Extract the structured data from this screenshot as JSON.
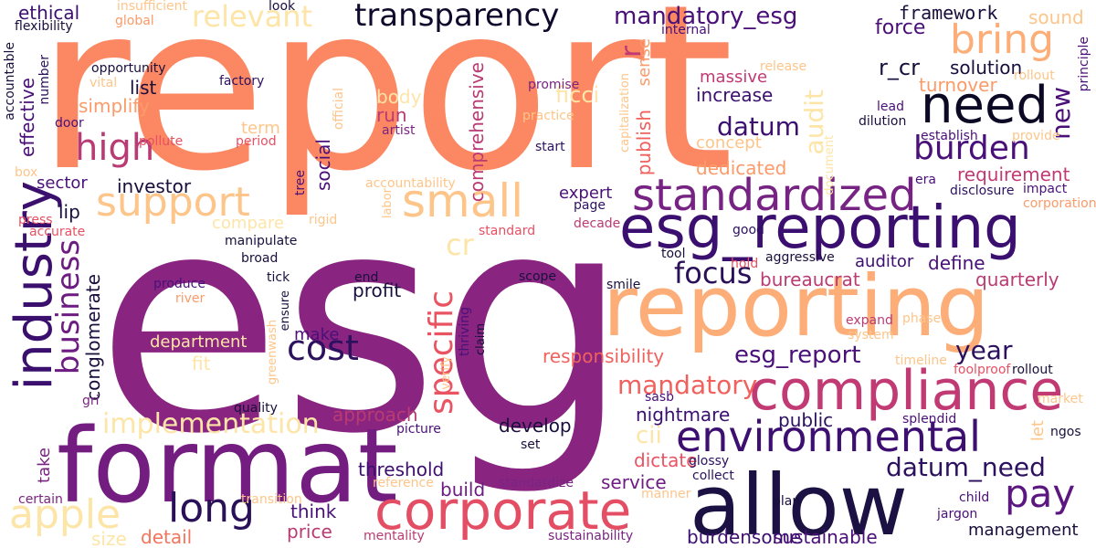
{
  "colors": {
    "background": "#ffffff",
    "palette": [
      "#190f3c",
      "#4a1079",
      "#7a2482",
      "#b93b73",
      "#e65163",
      "#f5745c",
      "#fb9b6a",
      "#fdbd83",
      "#fddc9e",
      "#fcfdbf"
    ]
  },
  "words": {
    "report": "report",
    "esg": "esg",
    "format": "format",
    "allow": "allow",
    "esg_reporting": "esg_reporting",
    "reporting": "reporting",
    "compliance": "compliance",
    "corporate": "corporate",
    "industry": "industry",
    "standardized": "standardized",
    "small": "small",
    "need": "need",
    "support": "support",
    "high": "high",
    "bring": "bring",
    "environmental": "environmental",
    "apple": "apple",
    "transparency": "transparency",
    "mandatory_esg": "mandatory_esg",
    "relevant": "relevant",
    "long": "long",
    "pay": "pay",
    "burden": "burden",
    "business": "business",
    "specific": "specific",
    "cost": "cost",
    "focus": "focus",
    "implementation": "implementation",
    "datum_need": "datum_need",
    "cr": "cr",
    "mandatory": "mandatory",
    "datum": "datum",
    "audit": "audit",
    "r_cr": "r_cr",
    "year": "year",
    "esg_report": "esg_report",
    "new": "new",
    "increase": "increase",
    "massive": "massive",
    "framework": "framework",
    "force": "force",
    "solution": "solution",
    "turnover": "turnover",
    "dedicated": "dedicated",
    "concept": "concept",
    "requirement": "requirement",
    "quarterly": "quarterly",
    "define": "define",
    "auditor": "auditor",
    "bureaucrat": "bureaucrat",
    "responsibility": "responsibility",
    "approach": "approach",
    "develop": "develop",
    "nightmare": "nightmare",
    "public": "public",
    "cii": "cii",
    "dictate": "dictate",
    "service": "service",
    "threshold": "threshold",
    "build": "build",
    "think": "think",
    "price": "price",
    "detail": "detail",
    "size": "size",
    "take": "take",
    "make": "make",
    "profit": "profit",
    "expert": "expert",
    "sector": "sector",
    "investor": "investor",
    "lip": "lip",
    "compare": "compare",
    "conglomerate": "conglomerate",
    "department": "department",
    "fit": "fit",
    "social": "social",
    "comprehensive": "comprehensive",
    "publish": "publish",
    "sense": "sense",
    "run": "run",
    "body": "body",
    "ficci": "ficci",
    "list": "list",
    "simplify": "simplify",
    "effective": "effective",
    "term": "term",
    "ethical": "ethical",
    "flexibility": "flexibility",
    "global": "global",
    "insufficient": "insufficient",
    "look": "look",
    "opportunity": "opportunity",
    "vital": "vital",
    "number": "number",
    "accountable": "accountable",
    "door": "door",
    "factory": "factory",
    "period": "period",
    "pollute": "pollute",
    "box": "box",
    "artist": "artist",
    "practice": "practice",
    "promise": "promise",
    "start": "start",
    "internal": "internal",
    "capitalization": "capitalization",
    "release": "release",
    "lead": "lead",
    "dilution": "dilution",
    "establish": "establish",
    "provide": "provide",
    "sound": "sound",
    "rollout": "rollout",
    "principle": "principle",
    "official": "official",
    "tree": "tree",
    "accountability": "accountability",
    "document": "document",
    "era": "era",
    "disclosure": "disclosure",
    "impact": "impact",
    "corporation": "corporation",
    "good": "good",
    "hold": "hold",
    "aggressive": "aggressive",
    "tool": "tool",
    "decade": "decade",
    "page": "page",
    "labor": "labor",
    "standard": "standard",
    "rigid": "rigid",
    "press": "press",
    "accurate": "accurate",
    "manipulate": "manipulate",
    "broad": "broad",
    "tick": "tick",
    "produce": "produce",
    "river": "river",
    "end": "end",
    "ensure": "ensure",
    "scope": "scope",
    "smile": "smile",
    "greenwash": "greenwash",
    "claim": "claim",
    "thriving": "thriving",
    "verify": "verify",
    "expand": "expand",
    "phase": "phase",
    "system": "system",
    "timeline": "timeline",
    "foolproof": "foolproof",
    "sasb": "sasb",
    "market": "market",
    "splendid": "splendid",
    "let": "let",
    "ngos": "ngos",
    "gri": "gri",
    "quality": "quality",
    "picture": "picture",
    "set": "set",
    "reference": "reference",
    "standardize": "standardize",
    "manner": "manner",
    "collect": "collect",
    "glossy": "glossy",
    "certain": "certain",
    "transition": "transition",
    "mentality": "mentality",
    "sustainability": "sustainability",
    "burdensome": "burdensome",
    "sustainable": "sustainable",
    "plan": "plan",
    "child": "child",
    "jargon": "jargon",
    "management": "management"
  }
}
